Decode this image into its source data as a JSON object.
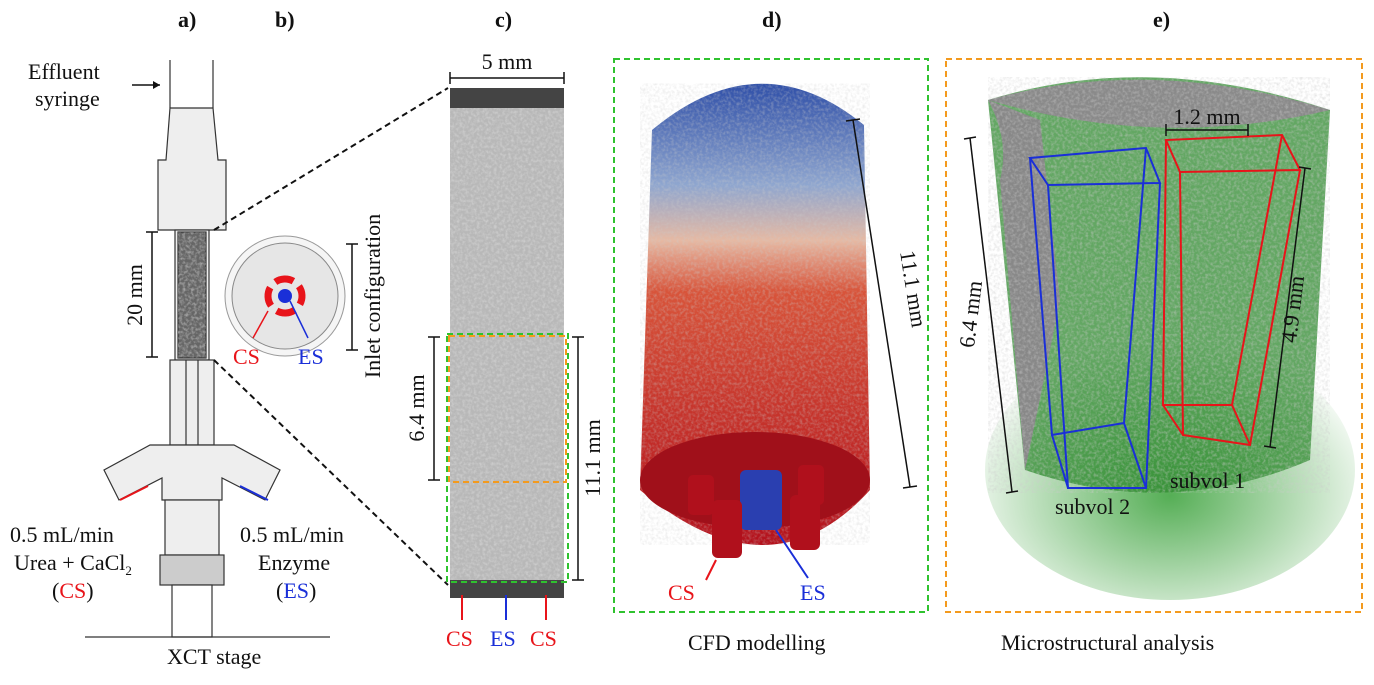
{
  "panels": {
    "a": {
      "label": "a)",
      "effluent_line1": "Effluent",
      "effluent_line2": "syringe",
      "length": "20 mm",
      "left_flow": "0.5 mL/min",
      "left_reagent": "Urea + CaCl",
      "left_reagent_sub": "2",
      "left_code_open": "(",
      "left_code": "CS",
      "left_code_close": ")",
      "right_flow": "0.5 mL/min",
      "right_reagent": "Enzyme",
      "right_code_open": "(",
      "right_code": "ES",
      "right_code_close": ")",
      "stage": "XCT stage"
    },
    "b": {
      "label": "b)",
      "title": "Inlet configuration",
      "cs": "CS",
      "es": "ES"
    },
    "c": {
      "label": "c)",
      "width": "5 mm",
      "sub_length": "6.4 mm",
      "length": "11.1 mm",
      "inlets": [
        "CS",
        "ES",
        "CS"
      ]
    },
    "d": {
      "label": "d)",
      "length": "11.1 mm",
      "cs": "CS",
      "es": "ES",
      "caption": "CFD modelling"
    },
    "e": {
      "label": "e)",
      "width": "1.2 mm",
      "height": "6.4 mm",
      "subvol_height": "4.9 mm",
      "subvol2": "subvol 2",
      "subvol1": "subvol 1",
      "caption": "Microstructural analysis"
    }
  },
  "colors": {
    "cs": "#e8141a",
    "es": "#1a2fd8",
    "green_box": "#2fc22f",
    "orange_box": "#f39a1e"
  }
}
